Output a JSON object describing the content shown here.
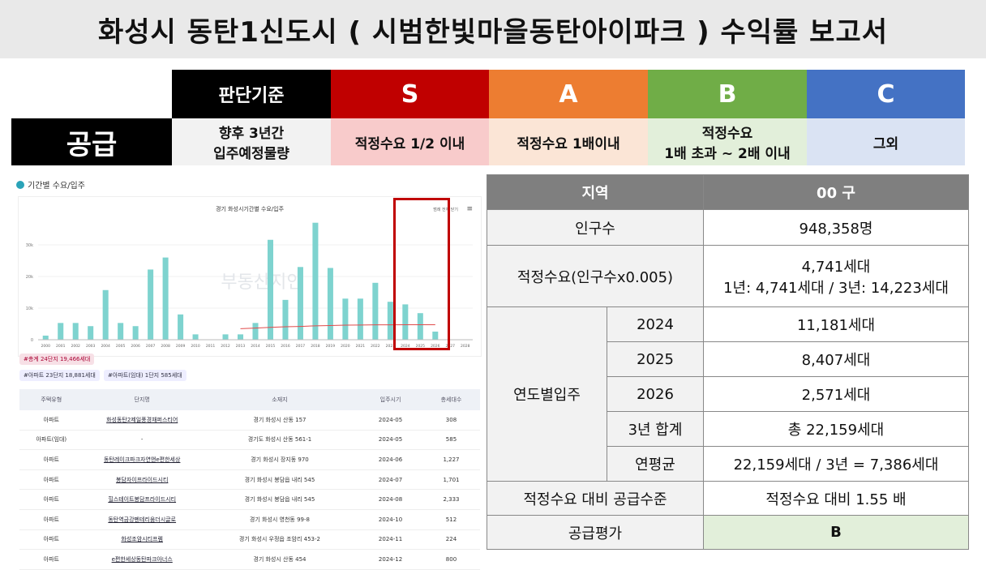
{
  "title": "화성시 동탄1신도시 ( 시범한빛마을동탄아이파크 ) 수익률 보고서",
  "criteria": {
    "base_label": "판단기준",
    "grades": [
      {
        "label": "S",
        "color": "#c00000",
        "desc": "적정수요 1/2 이내",
        "desc_bg": "#f8cbcb"
      },
      {
        "label": "A",
        "color": "#ed7d31",
        "desc": "적정수요 1배이내",
        "desc_bg": "#fbe5d6"
      },
      {
        "label": "B",
        "color": "#70ad47",
        "desc": "적정수요\n1배 초과 ~ 2배 이내",
        "desc_bg": "#e2efda"
      },
      {
        "label": "C",
        "color": "#4472c4",
        "desc": "그외",
        "desc_bg": "#dae3f3"
      }
    ],
    "supply_label": "공급",
    "supply_desc": "향후 3년간\n입주예정물량"
  },
  "panel": {
    "title": "기간별 수요/입주",
    "chart_title": "경기 화성시기간별 수요/입주",
    "legend": "범례 전체 닫기",
    "watermark": "부동산지인",
    "summary_total": "#총계 24단지 19,466세대",
    "summary_apt": "#아파트 23단지 18,881세대",
    "summary_rent": "#아파트(임대) 1단지 585세대",
    "columns": [
      "주택유형",
      "단지명",
      "소재지",
      "입주시기",
      "총세대수"
    ],
    "rows": [
      [
        "아파트",
        "화성동탄2제일풍경채퍼스티어",
        "경기 화성시 산동 157",
        "2024-05",
        "308"
      ],
      [
        "아파트(임대)",
        "-",
        "경기도 화성시 산동 561-1",
        "2024-05",
        "585"
      ],
      [
        "아파트",
        "동탄레이크파크자연앤e편한세상",
        "경기 화성시 장지동 970",
        "2024-06",
        "1,227"
      ],
      [
        "아파트",
        "봉담자이프라이드시티",
        "경기 화성시 봉담읍 내리 545",
        "2024-07",
        "1,701"
      ],
      [
        "아파트",
        "힐스테이트봉담프라이드시티",
        "경기 화성시 봉담읍 내리 545",
        "2024-08",
        "2,333"
      ],
      [
        "아파트",
        "동탄역금강펜테리움더시글로",
        "경기 화성시 영천동 99-8",
        "2024-10",
        "512"
      ],
      [
        "아파트",
        "화성조암시티프렘",
        "경기 화성시 우정읍 조암리 453-2",
        "2024-11",
        "224"
      ],
      [
        "아파트",
        "e편한세상동탄파크아너스",
        "경기 화성시 산동 454",
        "2024-12",
        "800"
      ]
    ]
  },
  "chart_data": {
    "type": "bar",
    "title": "경기 화성시기간별 수요/입주",
    "categories": [
      "2000",
      "2001",
      "2002",
      "2003",
      "2004",
      "2005",
      "2006",
      "2007",
      "2008",
      "2009",
      "2010",
      "2011",
      "2012",
      "2013",
      "2014",
      "2015",
      "2016",
      "2017",
      "2018",
      "2019",
      "2020",
      "2021",
      "2022",
      "2023",
      "2024",
      "2025",
      "2026",
      "2027",
      "2028"
    ],
    "series": [
      {
        "name": "입주",
        "values": [
          1300,
          5300,
          5300,
          4300,
          15700,
          5300,
          4300,
          22200,
          26000,
          8000,
          1700,
          0,
          1700,
          1700,
          5300,
          31600,
          12600,
          23000,
          37000,
          22700,
          13000,
          13000,
          18000,
          12000,
          11181,
          8407,
          2571,
          0,
          0
        ]
      },
      {
        "name": "수요",
        "values": [
          null,
          null,
          null,
          null,
          null,
          null,
          null,
          null,
          null,
          null,
          null,
          null,
          null,
          3500,
          3700,
          3900,
          4100,
          4200,
          4400,
          4500,
          4600,
          4650,
          4700,
          4720,
          4741,
          4741,
          4741,
          null,
          null
        ]
      }
    ],
    "ylim": [
      0,
      40000
    ],
    "yticks": [
      "0",
      "10k",
      "20k",
      "30k"
    ]
  },
  "right": {
    "header_region": "지역",
    "header_value": "00 구",
    "pop_label": "인구수",
    "pop_value": "948,358명",
    "demand_label": "적정수요(인구수x0.005)",
    "demand_value1": "4,741세대",
    "demand_value2": "1년: 4,741세대 / 3년: 14,223세대",
    "yearly_label": "연도별입주",
    "years": [
      {
        "y": "2024",
        "v": "11,181세대"
      },
      {
        "y": "2025",
        "v": "8,407세대"
      },
      {
        "y": "2026",
        "v": "2,571세대"
      }
    ],
    "sum_label": "3년 합계",
    "sum_value": "총 22,159세대",
    "avg_label": "연평균",
    "avg_value": "22,159세대 / 3년 =  7,386세대",
    "level_label": "적정수요 대비 공급수준",
    "level_value": "적정수요 대비  1.55 배",
    "eval_label": "공급평가",
    "eval_value": "B"
  }
}
